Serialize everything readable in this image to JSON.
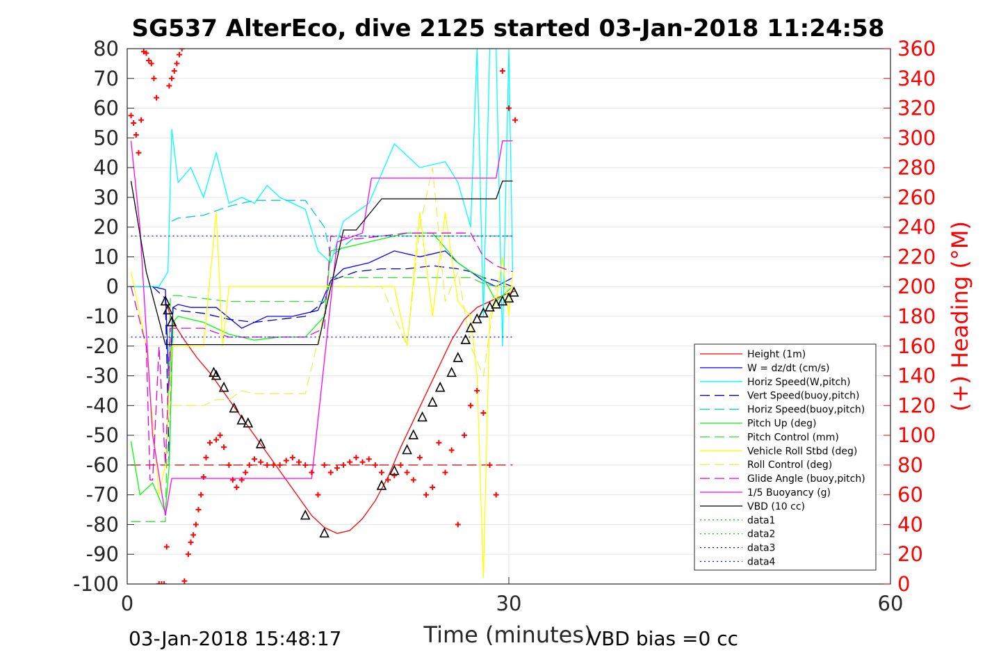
{
  "chart_data": {
    "type": "line",
    "title": "SG537 AlterEco, dive 2125 started 03-Jan-2018 11:24:58",
    "xlabel": "Time (minutes)",
    "ylabel": "",
    "y2label": "(+) Heading (°M)",
    "xlim": [
      0,
      60
    ],
    "ylim": [
      -100,
      80
    ],
    "y2lim": [
      0,
      360
    ],
    "x_ticks": [
      "0",
      "30",
      "60"
    ],
    "y_ticks": [
      "80",
      "70",
      "60",
      "50",
      "40",
      "30",
      "20",
      "10",
      "0",
      "-10",
      "-20",
      "-30",
      "-40",
      "-50",
      "-60",
      "-70",
      "-80",
      "-90",
      "-100"
    ],
    "y2_ticks": [
      "360",
      "340",
      "320",
      "300",
      "280",
      "260",
      "240",
      "220",
      "200",
      "180",
      "160",
      "140",
      "120",
      "100",
      "80",
      "60",
      "40",
      "20",
      "0"
    ],
    "grid": true,
    "legend_position": "lower-right",
    "footer_left": "03-Jan-2018 15:48:17",
    "footer_right": "VBD bias =0 cc",
    "colors": {
      "red": "#ff0000",
      "blue": "#0000ff",
      "cyan": "#00ffff",
      "green": "#00ff00",
      "yellow": "#ffff00",
      "magenta": "#ff00ff",
      "black": "#000000",
      "navy": "#0000c0"
    },
    "series": [
      {
        "name": "Height (1m)",
        "color": "#ff0000",
        "style": "solid",
        "x": [
          3.0,
          3.6,
          4.5,
          5.5,
          6.5,
          7.5,
          8.5,
          9.5,
          10.5,
          11.5,
          12.5,
          13.5,
          14.5,
          15.5,
          16.5,
          17.5,
          18.5,
          19.5,
          20.5,
          21.5,
          22.5,
          23.5,
          24.5,
          25.5,
          26.5,
          27.5,
          28.5,
          29.5,
          30.5
        ],
        "y": [
          -5,
          -12,
          -18,
          -24,
          -29,
          -35,
          -41,
          -47,
          -53,
          -59,
          -65,
          -71,
          -77,
          -81,
          -83,
          -82,
          -78,
          -72,
          -64,
          -54,
          -45,
          -36,
          -27,
          -18,
          -11,
          -7,
          -5,
          -3,
          -1.5
        ]
      },
      {
        "name": "W = dz/dt (cm/s)",
        "color": "#0000ff",
        "style": "solid",
        "x": [
          0.2,
          2.0,
          3.0,
          3.3,
          3.6,
          4.0,
          5,
          7,
          9,
          11,
          13,
          15,
          16,
          17,
          19,
          21,
          23,
          25,
          26,
          27,
          28,
          29,
          30.3
        ],
        "y": [
          0,
          0,
          -1,
          -35,
          -7,
          -6,
          -7,
          -7,
          -14,
          -10,
          -10,
          -8,
          2,
          6,
          8,
          12,
          10,
          12,
          8,
          5,
          2,
          0,
          3
        ]
      },
      {
        "name": "Horiz Speed(W,pitch)",
        "color": "#00ffff",
        "style": "solid",
        "x": [
          0.2,
          2.5,
          3.2,
          3.5,
          4.0,
          5,
          6,
          7,
          8,
          9,
          10,
          11,
          12,
          13,
          14,
          15,
          16,
          17,
          19,
          21,
          23,
          25,
          26,
          27,
          27.5,
          28,
          28.5,
          29,
          29.5,
          30,
          30.3
        ],
        "y": [
          0,
          0,
          5,
          53,
          35,
          40,
          30,
          45,
          28,
          30,
          28,
          34,
          30,
          28,
          26,
          12,
          8,
          22,
          28,
          48,
          40,
          42,
          35,
          20,
          80,
          -10,
          80,
          80,
          -20,
          80,
          5
        ]
      },
      {
        "name": "Vert Speed(buoy,pitch)",
        "color": "#0000c0",
        "style": "dashed",
        "x": [
          2.0,
          3.0,
          3.3,
          3.6,
          4.0,
          6,
          8,
          10,
          12,
          14,
          15.5,
          16,
          18,
          20,
          22,
          24,
          26,
          27,
          28,
          29,
          30.3
        ],
        "y": [
          0,
          -4,
          -60,
          -7,
          -8,
          -9,
          -11,
          -12,
          -11,
          -10,
          -5,
          2,
          5,
          6,
          6,
          7,
          6,
          5,
          3,
          2,
          0
        ]
      },
      {
        "name": "Horiz Speed(buoy,pitch)",
        "color": "#00cccc",
        "style": "dashed",
        "x": [
          3.5,
          4.0,
          6,
          8,
          10,
          12,
          14,
          15.5,
          16,
          18,
          20,
          22,
          24,
          26,
          27,
          28,
          29,
          30.3
        ],
        "y": [
          22,
          23,
          24,
          27,
          29,
          29,
          29,
          20,
          10,
          17,
          17,
          17,
          17,
          17,
          17,
          17,
          17,
          17
        ]
      },
      {
        "name": "Pitch Up (deg)",
        "color": "#00ff00",
        "style": "solid",
        "x": [
          0.3,
          1.0,
          2.0,
          3.0,
          3.3,
          3.6,
          4.0,
          6,
          8,
          10,
          12,
          14,
          15.5,
          16,
          18,
          20,
          22,
          24,
          26,
          27,
          28,
          29,
          30.3
        ],
        "y": [
          -52,
          -70,
          -66,
          -76,
          -60,
          -12,
          -10,
          -12,
          -16,
          -18,
          -17,
          -17,
          -10,
          12,
          14,
          16,
          18,
          18,
          8,
          5,
          3,
          -5,
          0
        ]
      },
      {
        "name": "Pitch Control (mm)",
        "color": "#33dd33",
        "style": "dashed",
        "x": [
          0.3,
          2.5,
          3.0,
          3.4,
          4.0,
          8,
          12,
          15.5,
          16,
          20,
          24,
          27,
          28,
          29,
          30.3
        ],
        "y": [
          -79,
          -79,
          -79,
          -3,
          -3,
          -5,
          -5,
          -5,
          3,
          3,
          3,
          3,
          1,
          0,
          0
        ]
      },
      {
        "name": "Vehicle Roll Stbd (deg)",
        "color": "#ffff00",
        "style": "solid",
        "x": [
          0.3,
          1.5,
          2.5,
          3.0,
          3.5,
          4.0,
          5,
          6,
          7,
          7.5,
          8,
          9,
          10,
          11,
          12,
          13,
          14,
          15,
          16,
          17,
          19,
          21,
          22,
          23,
          24,
          25,
          26,
          27,
          27.5,
          28,
          28.5,
          29,
          29.5,
          30,
          30.3
        ],
        "y": [
          5,
          -20,
          -70,
          -60,
          -20,
          -20,
          -20,
          -20,
          25,
          -20,
          0,
          0,
          0,
          0,
          0,
          0,
          0,
          0,
          0,
          0,
          0,
          0,
          -20,
          25,
          -10,
          25,
          -5,
          -10,
          -30,
          -98,
          -10,
          -5,
          10,
          -10,
          5
        ]
      },
      {
        "name": "Roll Control (deg)",
        "color": "#eeee55",
        "style": "dashed",
        "x": [
          3.5,
          4.0,
          5,
          6,
          7,
          8,
          9,
          10,
          11,
          12,
          14,
          16,
          18,
          20,
          22,
          23,
          24,
          25,
          26,
          27,
          28,
          29,
          30.3
        ],
        "y": [
          -40,
          -40,
          -40,
          -40,
          -38,
          -38,
          -35,
          -36,
          -36,
          -36,
          -36,
          0,
          0,
          0,
          -20,
          20,
          40,
          -5,
          5,
          -20,
          -30,
          0,
          0
        ]
      },
      {
        "name": "Glide Angle (buoy,pitch)",
        "color": "#dd00dd",
        "style": "dashed",
        "x": [
          0.3,
          1.5,
          1.8,
          2.0,
          2.5,
          3.0,
          3.4,
          4.0,
          6,
          8,
          10,
          12,
          14,
          15.5,
          16,
          18,
          20,
          22,
          24,
          26,
          27,
          28,
          29,
          30.3
        ],
        "y": [
          0,
          -20,
          -65,
          -65,
          -20,
          -60,
          -14,
          -14,
          -14,
          -17,
          -17,
          -17,
          -17,
          -14,
          17,
          16,
          17,
          18,
          18,
          18,
          18,
          10,
          7,
          5
        ]
      },
      {
        "name": "1/5 Buoyancy (g)",
        "color": "#ff00ff",
        "style": "solid",
        "x": [
          0.3,
          1.0,
          2.0,
          3.0,
          3.5,
          6,
          10,
          14,
          14.5,
          16.5,
          18.5,
          19.2,
          22,
          26,
          29,
          29.5,
          30.3
        ],
        "y": [
          49,
          20,
          -50,
          -77,
          -64.5,
          -64.5,
          -64.5,
          -64.5,
          -64.5,
          15,
          18,
          36.5,
          36.5,
          36.5,
          36.5,
          49,
          49
        ]
      },
      {
        "name": "VBD (10 cc)",
        "color": "#000000",
        "style": "solid",
        "x": [
          0.3,
          1.5,
          3.0,
          3.5,
          6,
          10,
          14,
          15,
          17,
          18,
          20,
          24,
          27,
          28,
          29,
          29.5,
          30.3
        ],
        "y": [
          35.5,
          5,
          -19.5,
          -19.5,
          -19.5,
          -19.5,
          -19.5,
          -19.5,
          19,
          19,
          29.5,
          29.5,
          29.5,
          29.5,
          29.5,
          35.5,
          35.5
        ]
      },
      {
        "name": "data1",
        "color": "#00cc00",
        "style": "dotted",
        "x": [],
        "y": []
      },
      {
        "name": "data2",
        "color": "#00dd00",
        "style": "dotted",
        "x": [],
        "y": []
      },
      {
        "name": "data3",
        "color": "#0000aa",
        "style": "dotted",
        "x": [
          0.3,
          30.3
        ],
        "y": [
          17,
          17
        ]
      },
      {
        "name": "data4",
        "color": "#0000ff",
        "style": "dotted",
        "x": [
          0.3,
          30.3
        ],
        "y": [
          -17,
          -17
        ]
      }
    ],
    "reference_lines": [
      {
        "color": "#cc0000",
        "style": "dashed",
        "x": [
          0.3,
          30.3
        ],
        "y": [
          -60,
          -60
        ]
      }
    ],
    "heading_points": {
      "color": "#ff0000",
      "marker": "+",
      "axis": "right",
      "x": [
        0.3,
        0.5,
        0.7,
        0.9,
        1.1,
        1.3,
        1.5,
        1.7,
        1.9,
        2.1,
        2.3,
        2.5,
        2.7,
        2.9,
        3.1,
        3.3,
        3.5,
        3.7,
        3.9,
        4.1,
        4.3,
        4.5,
        4.8,
        5.0,
        5.2,
        5.4,
        5.6,
        5.8,
        6.0,
        6.2,
        6.5,
        7.0,
        7.3,
        7.6,
        8.0,
        8.3,
        8.6,
        9.0,
        9.3,
        9.6,
        10.0,
        10.5,
        11.0,
        11.5,
        12.0,
        12.5,
        13.0,
        13.5,
        14.0,
        14.5,
        15.0,
        15.5,
        16.0,
        16.5,
        17.0,
        17.5,
        18.0,
        18.5,
        19.0,
        19.5,
        20.0,
        20.5,
        21.0,
        21.5,
        22.0,
        22.5,
        23.0,
        23.5,
        24.0,
        24.5,
        25.0,
        25.5,
        26.0,
        26.5,
        27.0,
        27.5,
        28.0,
        28.5,
        29.0,
        29.5,
        30.0,
        30.5
      ],
      "y": [
        315,
        310,
        302,
        290,
        312,
        358,
        357,
        352,
        350,
        340,
        327,
        0,
        0,
        0,
        25,
        335,
        340,
        345,
        350,
        356,
        360,
        2,
        20,
        28,
        33,
        40,
        50,
        60,
        72,
        85,
        95,
        97,
        100,
        92,
        80,
        70,
        65,
        70,
        75,
        80,
        84,
        82,
        80,
        80,
        80,
        83,
        85,
        82,
        80,
        75,
        60,
        80,
        75,
        78,
        80,
        82,
        85,
        82,
        84,
        80,
        75,
        70,
        73,
        80,
        75,
        70,
        85,
        60,
        65,
        95,
        75,
        90,
        40,
        100,
        120,
        130,
        115,
        80,
        60,
        345,
        320,
        312
      ]
    },
    "position_markers": {
      "color": "#000000",
      "marker": "triangle",
      "x": [
        3.0,
        3.2,
        3.5,
        6.8,
        7.0,
        7.6,
        8.4,
        9.0,
        9.5,
        10.5,
        14.0,
        15.5,
        20.0,
        21.0,
        22.0,
        22.5,
        23.2,
        24.0,
        24.6,
        25.5,
        26.0,
        26.6,
        27.0,
        27.5,
        28.0,
        28.5,
        29.0,
        29.5,
        30.0,
        30.4
      ],
      "y": [
        -5,
        -8,
        -12,
        -29,
        -30,
        -34,
        -41,
        -45,
        -46,
        -53,
        -77,
        -83,
        -67,
        -62,
        -55,
        -50,
        -44,
        -39,
        -34,
        -29,
        -24,
        -18,
        -14,
        -11,
        -9,
        -7,
        -6,
        -5,
        -4,
        -2
      ]
    }
  }
}
